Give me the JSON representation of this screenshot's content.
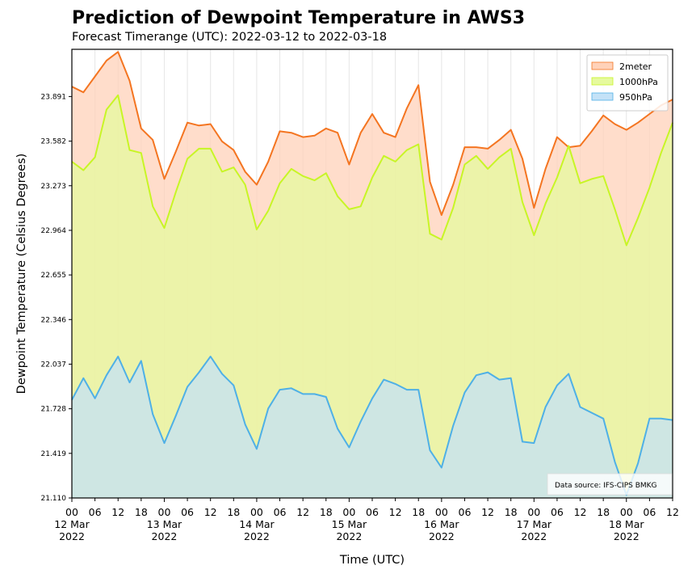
{
  "title": "Prediction of Dewpoint Temperature in AWS3",
  "subtitle": "Forecast Timerange (UTC): 2022-03-12 to 2022-03-18",
  "chart_data": {
    "type": "area",
    "xlabel": "Time (UTC)",
    "ylabel": "Dewpoint Temperature (Celsius Degrees)",
    "ylim": [
      21.11,
      24.218
    ],
    "yticks": [
      "21.110",
      "21.419",
      "21.728",
      "22.037",
      "22.346",
      "22.655",
      "22.964",
      "23.273",
      "23.582",
      "23.891"
    ],
    "x_start": "2022-03-12 00:00",
    "x_step_hours": 3,
    "x_major_ticks": [
      {
        "hour": 0,
        "line1": "00",
        "line2": "12 Mar",
        "line3": "2022"
      },
      {
        "hour": 24,
        "line1": "00",
        "line2": "13 Mar",
        "line3": "2022"
      },
      {
        "hour": 48,
        "line1": "00",
        "line2": "14 Mar",
        "line3": "2022"
      },
      {
        "hour": 72,
        "line1": "00",
        "line2": "15 Mar",
        "line3": "2022"
      },
      {
        "hour": 96,
        "line1": "00",
        "line2": "16 Mar",
        "line3": "2022"
      },
      {
        "hour": 120,
        "line1": "00",
        "line2": "17 Mar",
        "line3": "2022"
      },
      {
        "hour": 144,
        "line1": "00",
        "line2": "18 Mar",
        "line3": "2022"
      }
    ],
    "x_minor_ticks": [
      {
        "hour": 6,
        "label": "06"
      },
      {
        "hour": 12,
        "label": "12"
      },
      {
        "hour": 18,
        "label": "18"
      },
      {
        "hour": 30,
        "label": "06"
      },
      {
        "hour": 36,
        "label": "12"
      },
      {
        "hour": 42,
        "label": "18"
      },
      {
        "hour": 54,
        "label": "06"
      },
      {
        "hour": 60,
        "label": "12"
      },
      {
        "hour": 66,
        "label": "18"
      },
      {
        "hour": 78,
        "label": "06"
      },
      {
        "hour": 84,
        "label": "12"
      },
      {
        "hour": 90,
        "label": "18"
      },
      {
        "hour": 102,
        "label": "06"
      },
      {
        "hour": 108,
        "label": "12"
      },
      {
        "hour": 114,
        "label": "18"
      },
      {
        "hour": 126,
        "label": "06"
      },
      {
        "hour": 132,
        "label": "12"
      },
      {
        "hour": 138,
        "label": "18"
      },
      {
        "hour": 150,
        "label": "06"
      },
      {
        "hour": 156,
        "label": "12"
      }
    ],
    "grid": "vertical",
    "legend_position": "top-right",
    "series": [
      {
        "name": "2meter",
        "line_color": "#f47521",
        "fill_color": "#ffd2b9",
        "points": [
          [
            0,
            23.96
          ],
          [
            3,
            23.92
          ],
          [
            6,
            24.03
          ],
          [
            9,
            24.14
          ],
          [
            12,
            24.2
          ],
          [
            15,
            24.0
          ],
          [
            18,
            23.67
          ],
          [
            21,
            23.59
          ],
          [
            24,
            23.32
          ],
          [
            27,
            23.51
          ],
          [
            30,
            23.71
          ],
          [
            33,
            23.69
          ],
          [
            36,
            23.7
          ],
          [
            39,
            23.58
          ],
          [
            42,
            23.52
          ],
          [
            45,
            23.37
          ],
          [
            48,
            23.28
          ],
          [
            51,
            23.44
          ],
          [
            54,
            23.65
          ],
          [
            57,
            23.64
          ],
          [
            60,
            23.61
          ],
          [
            63,
            23.62
          ],
          [
            66,
            23.67
          ],
          [
            69,
            23.64
          ],
          [
            72,
            23.42
          ],
          [
            75,
            23.64
          ],
          [
            78,
            23.77
          ],
          [
            81,
            23.64
          ],
          [
            84,
            23.61
          ],
          [
            87,
            23.81
          ],
          [
            90,
            23.97
          ],
          [
            93,
            23.3
          ],
          [
            96,
            23.07
          ],
          [
            99,
            23.28
          ],
          [
            102,
            23.54
          ],
          [
            105,
            23.54
          ],
          [
            108,
            23.53
          ],
          [
            111,
            23.59
          ],
          [
            114,
            23.66
          ],
          [
            117,
            23.46
          ],
          [
            120,
            23.12
          ],
          [
            123,
            23.39
          ],
          [
            126,
            23.61
          ],
          [
            129,
            23.54
          ],
          [
            132,
            23.55
          ],
          [
            135,
            23.65
          ],
          [
            138,
            23.76
          ],
          [
            141,
            23.7
          ],
          [
            144,
            23.66
          ],
          [
            147,
            23.71
          ],
          [
            150,
            23.77
          ],
          [
            153,
            23.83
          ],
          [
            156,
            23.87
          ]
        ]
      },
      {
        "name": "1000hPa",
        "line_color": "#c8f526",
        "fill_color": "#e6fa9e",
        "points": [
          [
            0,
            23.44
          ],
          [
            3,
            23.38
          ],
          [
            6,
            23.47
          ],
          [
            9,
            23.8
          ],
          [
            12,
            23.9
          ],
          [
            15,
            23.52
          ],
          [
            18,
            23.5
          ],
          [
            21,
            23.13
          ],
          [
            24,
            22.98
          ],
          [
            27,
            23.23
          ],
          [
            30,
            23.46
          ],
          [
            33,
            23.53
          ],
          [
            36,
            23.53
          ],
          [
            39,
            23.37
          ],
          [
            42,
            23.4
          ],
          [
            45,
            23.28
          ],
          [
            48,
            22.97
          ],
          [
            51,
            23.1
          ],
          [
            54,
            23.29
          ],
          [
            57,
            23.39
          ],
          [
            60,
            23.34
          ],
          [
            63,
            23.31
          ],
          [
            66,
            23.36
          ],
          [
            69,
            23.2
          ],
          [
            72,
            23.11
          ],
          [
            75,
            23.13
          ],
          [
            78,
            23.33
          ],
          [
            81,
            23.48
          ],
          [
            84,
            23.44
          ],
          [
            87,
            23.52
          ],
          [
            90,
            23.56
          ],
          [
            93,
            22.94
          ],
          [
            96,
            22.9
          ],
          [
            99,
            23.12
          ],
          [
            102,
            23.42
          ],
          [
            105,
            23.48
          ],
          [
            108,
            23.39
          ],
          [
            111,
            23.47
          ],
          [
            114,
            23.53
          ],
          [
            117,
            23.16
          ],
          [
            120,
            22.93
          ],
          [
            123,
            23.15
          ],
          [
            126,
            23.33
          ],
          [
            129,
            23.55
          ],
          [
            132,
            23.29
          ],
          [
            135,
            23.32
          ],
          [
            138,
            23.34
          ],
          [
            141,
            23.11
          ],
          [
            144,
            22.86
          ],
          [
            147,
            23.05
          ],
          [
            150,
            23.26
          ],
          [
            153,
            23.5
          ],
          [
            156,
            23.71
          ]
        ]
      },
      {
        "name": "950hPa",
        "line_color": "#4fb0e6",
        "fill_color": "#c4e2f7",
        "points": [
          [
            0,
            21.79
          ],
          [
            3,
            21.94
          ],
          [
            6,
            21.8
          ],
          [
            9,
            21.96
          ],
          [
            12,
            22.09
          ],
          [
            15,
            21.91
          ],
          [
            18,
            22.06
          ],
          [
            21,
            21.69
          ],
          [
            24,
            21.49
          ],
          [
            27,
            21.68
          ],
          [
            30,
            21.88
          ],
          [
            33,
            21.98
          ],
          [
            36,
            22.09
          ],
          [
            39,
            21.97
          ],
          [
            42,
            21.89
          ],
          [
            45,
            21.62
          ],
          [
            48,
            21.45
          ],
          [
            51,
            21.73
          ],
          [
            54,
            21.86
          ],
          [
            57,
            21.87
          ],
          [
            60,
            21.83
          ],
          [
            63,
            21.83
          ],
          [
            66,
            21.81
          ],
          [
            69,
            21.59
          ],
          [
            72,
            21.46
          ],
          [
            75,
            21.64
          ],
          [
            78,
            21.8
          ],
          [
            81,
            21.93
          ],
          [
            84,
            21.9
          ],
          [
            87,
            21.86
          ],
          [
            90,
            21.86
          ],
          [
            93,
            21.44
          ],
          [
            96,
            21.32
          ],
          [
            99,
            21.61
          ],
          [
            102,
            21.84
          ],
          [
            105,
            21.96
          ],
          [
            108,
            21.98
          ],
          [
            111,
            21.93
          ],
          [
            114,
            21.94
          ],
          [
            117,
            21.5
          ],
          [
            120,
            21.49
          ],
          [
            123,
            21.74
          ],
          [
            126,
            21.89
          ],
          [
            129,
            21.97
          ],
          [
            132,
            21.74
          ],
          [
            135,
            21.7
          ],
          [
            138,
            21.66
          ],
          [
            141,
            21.36
          ],
          [
            144,
            21.13
          ],
          [
            147,
            21.35
          ],
          [
            150,
            21.66
          ],
          [
            153,
            21.66
          ],
          [
            156,
            21.65
          ]
        ]
      }
    ],
    "annotation": "Data source: IFS-CIPS BMKG"
  }
}
